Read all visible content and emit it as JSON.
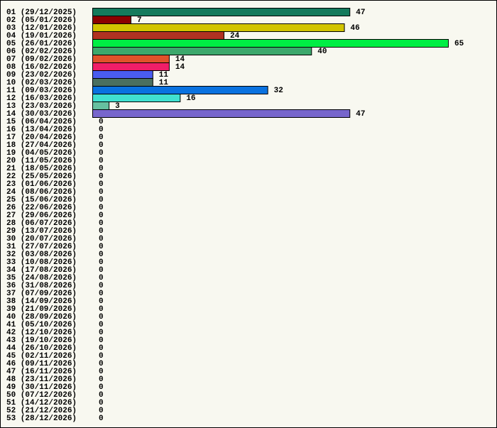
{
  "chart_data": {
    "type": "hbar",
    "categories": [
      "01 (29/12/2025)",
      "02 (05/01/2026)",
      "03 (12/01/2026)",
      "04 (19/01/2026)",
      "05 (26/01/2026)",
      "06 (02/02/2026)",
      "07 (09/02/2026)",
      "08 (16/02/2026)",
      "09 (23/02/2026)",
      "10 (02/03/2026)",
      "11 (09/03/2026)",
      "12 (16/03/2026)",
      "13 (23/03/2026)",
      "14 (30/03/2026)",
      "15 (06/04/2026)",
      "16 (13/04/2026)",
      "17 (20/04/2026)",
      "18 (27/04/2026)",
      "19 (04/05/2026)",
      "20 (11/05/2026)",
      "21 (18/05/2026)",
      "22 (25/05/2026)",
      "23 (01/06/2026)",
      "24 (08/06/2026)",
      "25 (15/06/2026)",
      "26 (22/06/2026)",
      "27 (29/06/2026)",
      "28 (06/07/2026)",
      "29 (13/07/2026)",
      "30 (20/07/2026)",
      "31 (27/07/2026)",
      "32 (03/08/2026)",
      "33 (10/08/2026)",
      "34 (17/08/2026)",
      "35 (24/08/2026)",
      "36 (31/08/2026)",
      "37 (07/09/2026)",
      "38 (14/09/2026)",
      "39 (21/09/2026)",
      "40 (28/09/2026)",
      "41 (05/10/2026)",
      "42 (12/10/2026)",
      "43 (19/10/2026)",
      "44 (26/10/2026)",
      "45 (02/11/2026)",
      "46 (09/11/2026)",
      "47 (16/11/2026)",
      "48 (23/11/2026)",
      "49 (30/11/2026)",
      "50 (07/12/2026)",
      "51 (14/12/2026)",
      "52 (21/12/2026)",
      "53 (28/12/2026)"
    ],
    "values": [
      47,
      7,
      46,
      24,
      65,
      40,
      14,
      14,
      11,
      11,
      32,
      16,
      3,
      47,
      0,
      0,
      0,
      0,
      0,
      0,
      0,
      0,
      0,
      0,
      0,
      0,
      0,
      0,
      0,
      0,
      0,
      0,
      0,
      0,
      0,
      0,
      0,
      0,
      0,
      0,
      0,
      0,
      0,
      0,
      0,
      0,
      0,
      0,
      0,
      0,
      0,
      0,
      0
    ],
    "colors": [
      "#147a5c",
      "#8b0000",
      "#d2c400",
      "#b03222",
      "#00ee44",
      "#3ca86c",
      "#e0522a",
      "#f01e68",
      "#4a5cf0",
      "#4a7060",
      "#0a72e0",
      "#40e0d0",
      "#66c0a0",
      "#7766cc",
      null,
      null,
      null,
      null,
      null,
      null,
      null,
      null,
      null,
      null,
      null,
      null,
      null,
      null,
      null,
      null,
      null,
      null,
      null,
      null,
      null,
      null,
      null,
      null,
      null,
      null,
      null,
      null,
      null,
      null,
      null,
      null,
      null,
      null,
      null,
      null,
      null,
      null,
      null
    ]
  }
}
